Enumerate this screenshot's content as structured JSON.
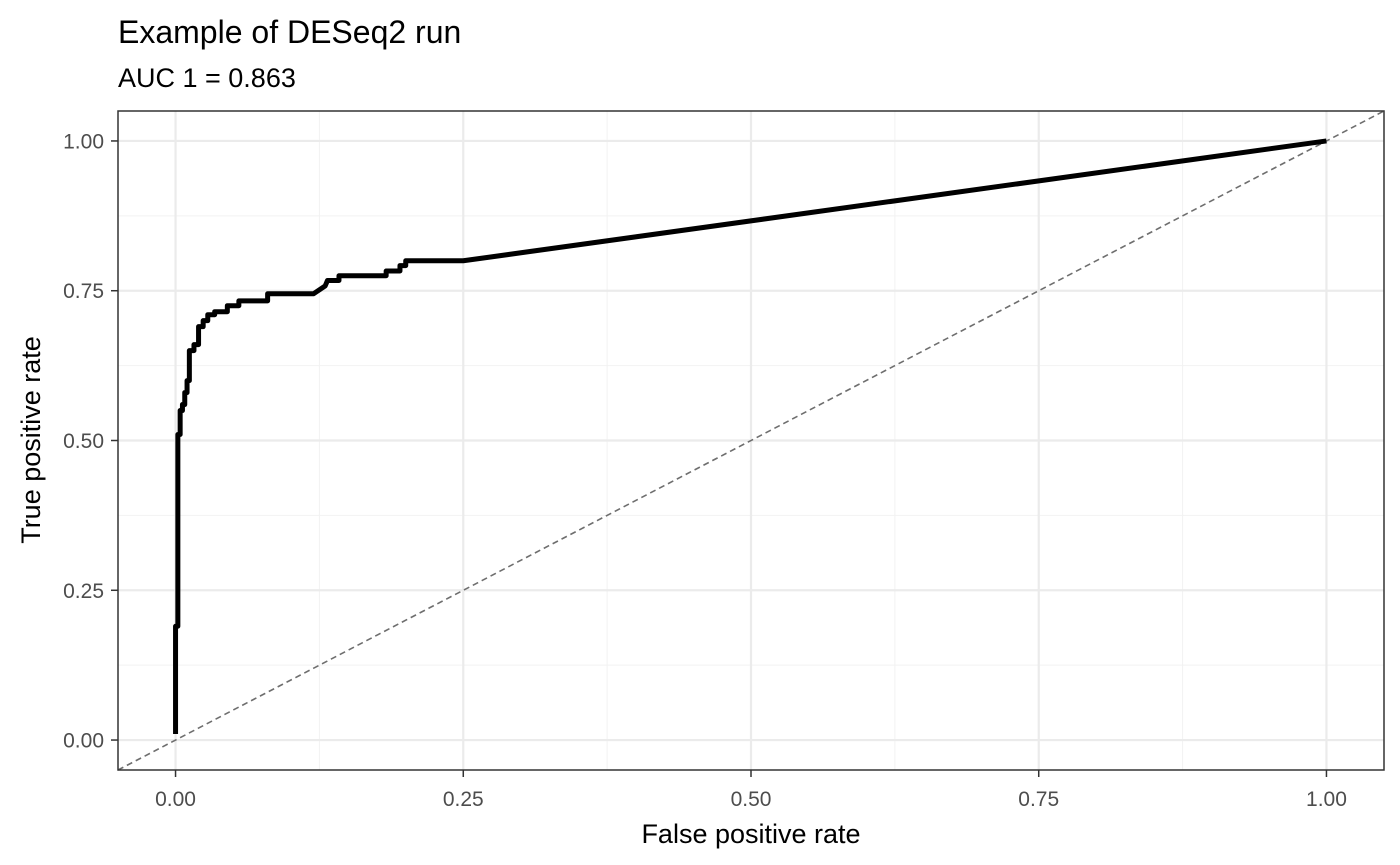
{
  "chart_data": {
    "type": "line",
    "title": "Example of DESeq2 run",
    "subtitle": "AUC 1 = 0.863",
    "xlabel": "False positive rate",
    "ylabel": "True positive rate",
    "xlim": [
      -0.05,
      1.05
    ],
    "ylim": [
      -0.05,
      1.05
    ],
    "grid": true,
    "x_ticks": [
      "0.00",
      "0.25",
      "0.50",
      "0.75",
      "1.00"
    ],
    "y_ticks": [
      "0.00",
      "0.25",
      "0.50",
      "0.75",
      "1.00"
    ],
    "reference_line": {
      "from": [
        0,
        0
      ],
      "to": [
        1,
        1
      ],
      "style": "dashed"
    },
    "series": [
      {
        "values": [
          [
            0.0,
            0.01
          ],
          [
            0.0,
            0.19
          ],
          [
            0.002,
            0.19
          ],
          [
            0.002,
            0.51
          ],
          [
            0.004,
            0.51
          ],
          [
            0.004,
            0.55
          ],
          [
            0.006,
            0.55
          ],
          [
            0.006,
            0.56
          ],
          [
            0.008,
            0.56
          ],
          [
            0.008,
            0.58
          ],
          [
            0.01,
            0.58
          ],
          [
            0.01,
            0.6
          ],
          [
            0.012,
            0.6
          ],
          [
            0.012,
            0.65
          ],
          [
            0.016,
            0.65
          ],
          [
            0.016,
            0.66
          ],
          [
            0.02,
            0.66
          ],
          [
            0.02,
            0.69
          ],
          [
            0.024,
            0.69
          ],
          [
            0.024,
            0.7
          ],
          [
            0.028,
            0.7
          ],
          [
            0.028,
            0.71
          ],
          [
            0.034,
            0.71
          ],
          [
            0.034,
            0.715
          ],
          [
            0.045,
            0.715
          ],
          [
            0.045,
            0.725
          ],
          [
            0.055,
            0.725
          ],
          [
            0.055,
            0.733
          ],
          [
            0.08,
            0.733
          ],
          [
            0.08,
            0.745
          ],
          [
            0.12,
            0.745
          ],
          [
            0.13,
            0.758
          ],
          [
            0.132,
            0.767
          ],
          [
            0.142,
            0.767
          ],
          [
            0.142,
            0.775
          ],
          [
            0.183,
            0.775
          ],
          [
            0.183,
            0.783
          ],
          [
            0.195,
            0.783
          ],
          [
            0.195,
            0.792
          ],
          [
            0.2,
            0.792
          ],
          [
            0.2,
            0.8
          ],
          [
            0.25,
            0.8
          ],
          [
            1.0,
            1.0
          ]
        ]
      }
    ]
  }
}
